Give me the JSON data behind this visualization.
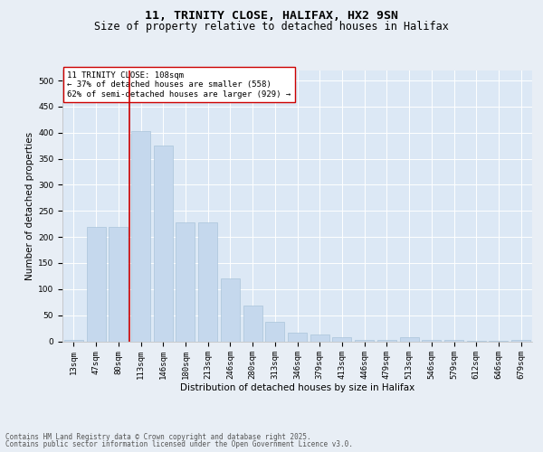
{
  "title": "11, TRINITY CLOSE, HALIFAX, HX2 9SN",
  "subtitle": "Size of property relative to detached houses in Halifax",
  "xlabel": "Distribution of detached houses by size in Halifax",
  "ylabel": "Number of detached properties",
  "categories": [
    "13sqm",
    "47sqm",
    "80sqm",
    "113sqm",
    "146sqm",
    "180sqm",
    "213sqm",
    "246sqm",
    "280sqm",
    "313sqm",
    "346sqm",
    "379sqm",
    "413sqm",
    "446sqm",
    "479sqm",
    "513sqm",
    "546sqm",
    "579sqm",
    "612sqm",
    "646sqm",
    "679sqm"
  ],
  "values": [
    2,
    220,
    220,
    403,
    375,
    228,
    228,
    120,
    68,
    38,
    17,
    13,
    7,
    3,
    3,
    7,
    2,
    2,
    1,
    1,
    2
  ],
  "bar_color": "#c5d8ed",
  "bar_edgecolor": "#a0bdd4",
  "vline_x_index": 3,
  "vline_color": "#cc0000",
  "annotation_text": "11 TRINITY CLOSE: 108sqm\n← 37% of detached houses are smaller (558)\n62% of semi-detached houses are larger (929) →",
  "annotation_box_color": "#ffffff",
  "annotation_box_edgecolor": "#cc0000",
  "bg_color": "#e8eef5",
  "plot_bg_color": "#dce8f5",
  "ylim": [
    0,
    520
  ],
  "yticks": [
    0,
    50,
    100,
    150,
    200,
    250,
    300,
    350,
    400,
    450,
    500
  ],
  "footer_line1": "Contains HM Land Registry data © Crown copyright and database right 2025.",
  "footer_line2": "Contains public sector information licensed under the Open Government Licence v3.0.",
  "title_fontsize": 9.5,
  "subtitle_fontsize": 8.5,
  "axis_label_fontsize": 7.5,
  "tick_fontsize": 6.5,
  "annotation_fontsize": 6.5,
  "footer_fontsize": 5.5
}
